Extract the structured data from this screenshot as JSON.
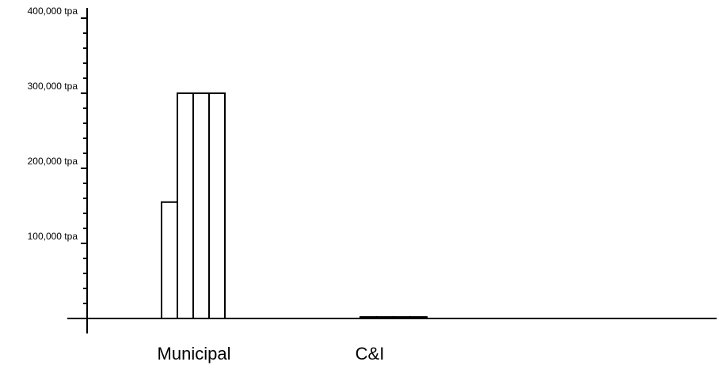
{
  "chart_data": {
    "type": "bar",
    "categories": [
      "Municipal",
      "C&I"
    ],
    "series": [
      {
        "values": [
          155000,
          2000
        ]
      },
      {
        "values": [
          300000,
          2000
        ]
      },
      {
        "values": [
          300000,
          2000
        ]
      },
      {
        "values": [
          300000,
          2000
        ]
      }
    ],
    "ylim": [
      0,
      400000
    ],
    "yticks": [
      "100,000 tpa",
      "200,000 tpa",
      "300,000 tpa",
      "400,000 tpa"
    ],
    "ytick_values": [
      100000,
      200000,
      300000,
      400000
    ],
    "minor_ticks_per_major": 5,
    "grid": false,
    "legend": "none",
    "title": "",
    "xlabel": "",
    "ylabel": "",
    "bar_fill": "#ffffff",
    "bar_stroke": "#000000"
  }
}
